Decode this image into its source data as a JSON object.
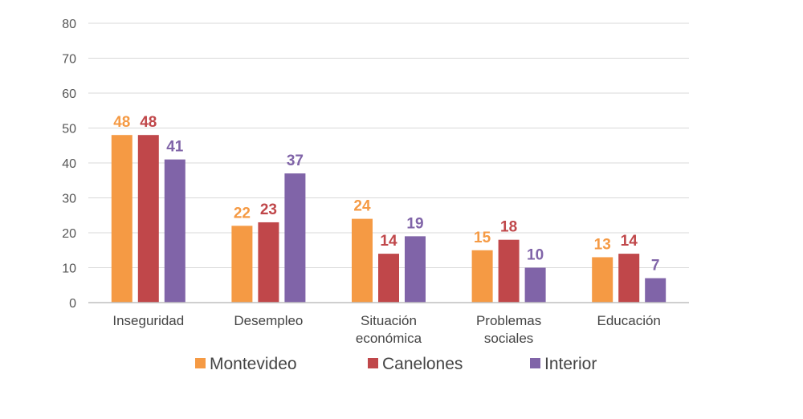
{
  "chart_data": {
    "type": "bar",
    "categories": [
      [
        "Inseguridad"
      ],
      [
        "Desempleo"
      ],
      [
        "Situación",
        "económica"
      ],
      [
        "Problemas",
        "sociales"
      ],
      [
        "Educación"
      ]
    ],
    "series": [
      {
        "name": "Montevideo",
        "color": "#F59A44",
        "values": [
          48,
          22,
          24,
          15,
          13
        ]
      },
      {
        "name": "Canelones",
        "color": "#C0474A",
        "values": [
          48,
          23,
          14,
          18,
          14
        ]
      },
      {
        "name": "Interior",
        "color": "#8064A8",
        "values": [
          41,
          37,
          19,
          10,
          7
        ]
      }
    ],
    "yticks": [
      0,
      10,
      20,
      30,
      40,
      50,
      60,
      70,
      80
    ],
    "ylim": [
      0,
      80
    ],
    "grid": true,
    "legend": "bottom"
  }
}
